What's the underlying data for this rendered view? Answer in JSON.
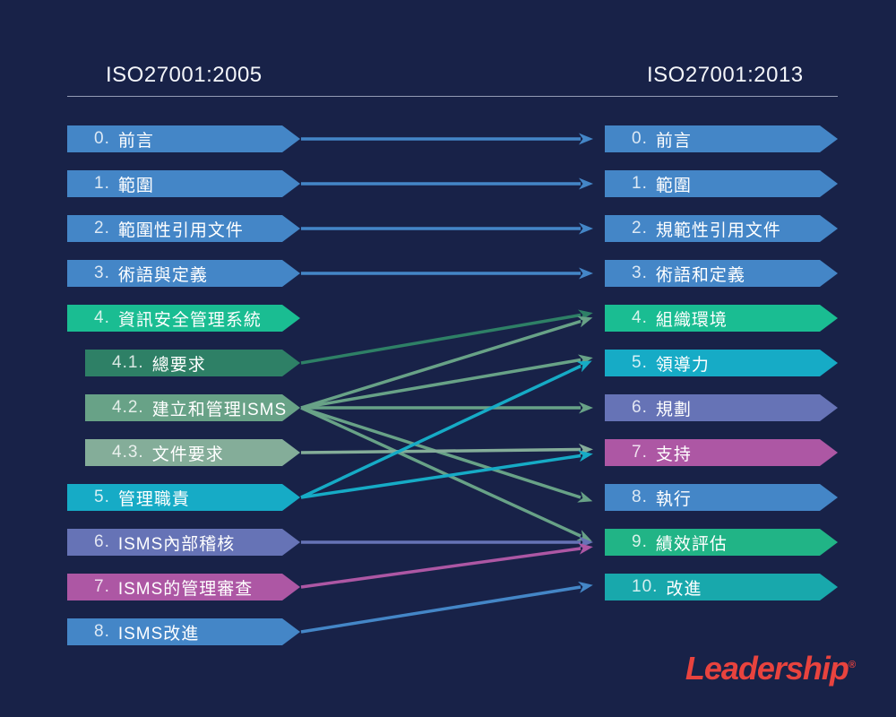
{
  "header": {
    "left_title": "ISO27001:2005",
    "right_title": "ISO27001:2013"
  },
  "logo": {
    "text": "Leadership",
    "reg": "®"
  },
  "colors": {
    "background": "#182248",
    "blue": "#4486c7",
    "green": "#1abd92",
    "darkgreen": "#2e8066",
    "sage": "#68a287",
    "lightsage": "#84ad99",
    "cyan": "#16abc6",
    "purple": "#6673b6",
    "magenta": "#ad57a4",
    "green9": "#21b486",
    "teal10": "#18a8ac",
    "divider": "#bec6d8",
    "title_text": "#f4f6fa",
    "logo_red": "#e8433e",
    "bar_text": "#ffffff"
  },
  "chart_data": {
    "type": "mapping-diagram",
    "title": "ISO27001:2005 to ISO27001:2013 clause mapping",
    "left_column": {
      "title": "ISO27001:2005",
      "items": [
        {
          "id": "L0",
          "num": "0.",
          "text": "前言",
          "color": "blue",
          "indent": false
        },
        {
          "id": "L1",
          "num": "1.",
          "text": "範圍",
          "color": "blue",
          "indent": false
        },
        {
          "id": "L2",
          "num": "2.",
          "text": "範圍性引用文件",
          "color": "blue",
          "indent": false
        },
        {
          "id": "L3",
          "num": "3.",
          "text": "術語與定義",
          "color": "blue",
          "indent": false
        },
        {
          "id": "L4",
          "num": "4.",
          "text": "資訊安全管理系統",
          "color": "green",
          "indent": false
        },
        {
          "id": "L41",
          "num": "4.1.",
          "text": "總要求",
          "color": "darkgreen",
          "indent": true
        },
        {
          "id": "L42",
          "num": "4.2.",
          "text": "建立和管理ISMS",
          "color": "sage",
          "indent": true
        },
        {
          "id": "L43",
          "num": "4.3.",
          "text": "文件要求",
          "color": "lightsage",
          "indent": true
        },
        {
          "id": "L5",
          "num": "5.",
          "text": "管理職責",
          "color": "cyan",
          "indent": false
        },
        {
          "id": "L6",
          "num": "6.",
          "text": "ISMS內部稽核",
          "color": "purple",
          "indent": false
        },
        {
          "id": "L7",
          "num": "7.",
          "text": "ISMS的管理審查",
          "color": "magenta",
          "indent": false
        },
        {
          "id": "L8",
          "num": "8.",
          "text": "ISMS改進",
          "color": "blue",
          "indent": false
        }
      ]
    },
    "right_column": {
      "title": "ISO27001:2013",
      "items": [
        {
          "id": "R0",
          "num": "0.",
          "text": "前言",
          "color": "blue"
        },
        {
          "id": "R1",
          "num": "1.",
          "text": "範圍",
          "color": "blue"
        },
        {
          "id": "R2",
          "num": "2.",
          "text": "規範性引用文件",
          "color": "blue"
        },
        {
          "id": "R3",
          "num": "3.",
          "text": "術語和定義",
          "color": "blue"
        },
        {
          "id": "R4",
          "num": "4.",
          "text": "組織環境",
          "color": "green"
        },
        {
          "id": "R5",
          "num": "5.",
          "text": "領導力",
          "color": "cyan"
        },
        {
          "id": "R6",
          "num": "6.",
          "text": "規劃",
          "color": "purple"
        },
        {
          "id": "R7",
          "num": "7.",
          "text": "支持",
          "color": "magenta"
        },
        {
          "id": "R8",
          "num": "8.",
          "text": "執行",
          "color": "blue"
        },
        {
          "id": "R9",
          "num": "9.",
          "text": "績效評估",
          "color": "green9"
        },
        {
          "id": "R10",
          "num": "10.",
          "text": "改進",
          "color": "teal10"
        }
      ]
    },
    "connections": [
      {
        "from": "L0",
        "to": "R0",
        "color": "blue"
      },
      {
        "from": "L1",
        "to": "R1",
        "color": "blue"
      },
      {
        "from": "L2",
        "to": "R2",
        "color": "blue"
      },
      {
        "from": "L3",
        "to": "R3",
        "color": "blue"
      },
      {
        "from": "L41",
        "to": "R4",
        "color": "darkgreen"
      },
      {
        "from": "L42",
        "to": "R4",
        "color": "sage"
      },
      {
        "from": "L42",
        "to": "R5",
        "color": "sage"
      },
      {
        "from": "L42",
        "to": "R6",
        "color": "sage"
      },
      {
        "from": "L42",
        "to": "R8",
        "color": "sage"
      },
      {
        "from": "L42",
        "to": "R9",
        "color": "sage"
      },
      {
        "from": "L43",
        "to": "R7",
        "color": "lightsage"
      },
      {
        "from": "L5",
        "to": "R5",
        "color": "cyan"
      },
      {
        "from": "L5",
        "to": "R7",
        "color": "cyan"
      },
      {
        "from": "L6",
        "to": "R9",
        "color": "purple"
      },
      {
        "from": "L7",
        "to": "R9",
        "color": "magenta"
      },
      {
        "from": "L8",
        "to": "R10",
        "color": "blue"
      }
    ]
  }
}
